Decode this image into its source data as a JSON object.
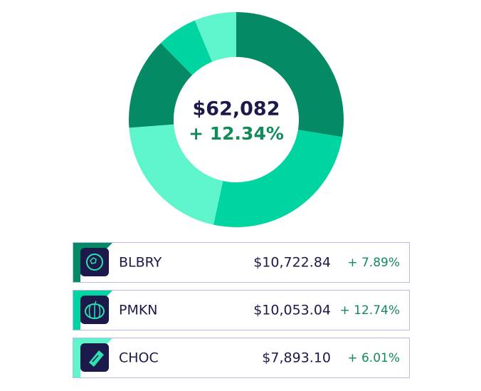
{
  "chart_data": {
    "type": "pie",
    "values": [
      27.6,
      25.8,
      20.4,
      13.8,
      6.1,
      6.3
    ],
    "colors": [
      "#058a66",
      "#00d4a0",
      "#5ff5cc",
      "#058a66",
      "#00d4a0",
      "#5ff5cc"
    ],
    "annotations": [
      "$62,082",
      "+ 12.34%"
    ]
  },
  "holdings": [
    {
      "symbol": "BLBRY",
      "price": "$10,722.84",
      "change": "+ 7.89%",
      "color": "#058a66"
    },
    {
      "symbol": "PMKN",
      "price": "$10,053.04",
      "change": "+ 12.74%",
      "color": "#00d4a0"
    },
    {
      "symbol": "CHOC",
      "price": "$7,893.10",
      "change": "+ 6.01%",
      "color": "#5ff5cc"
    }
  ]
}
